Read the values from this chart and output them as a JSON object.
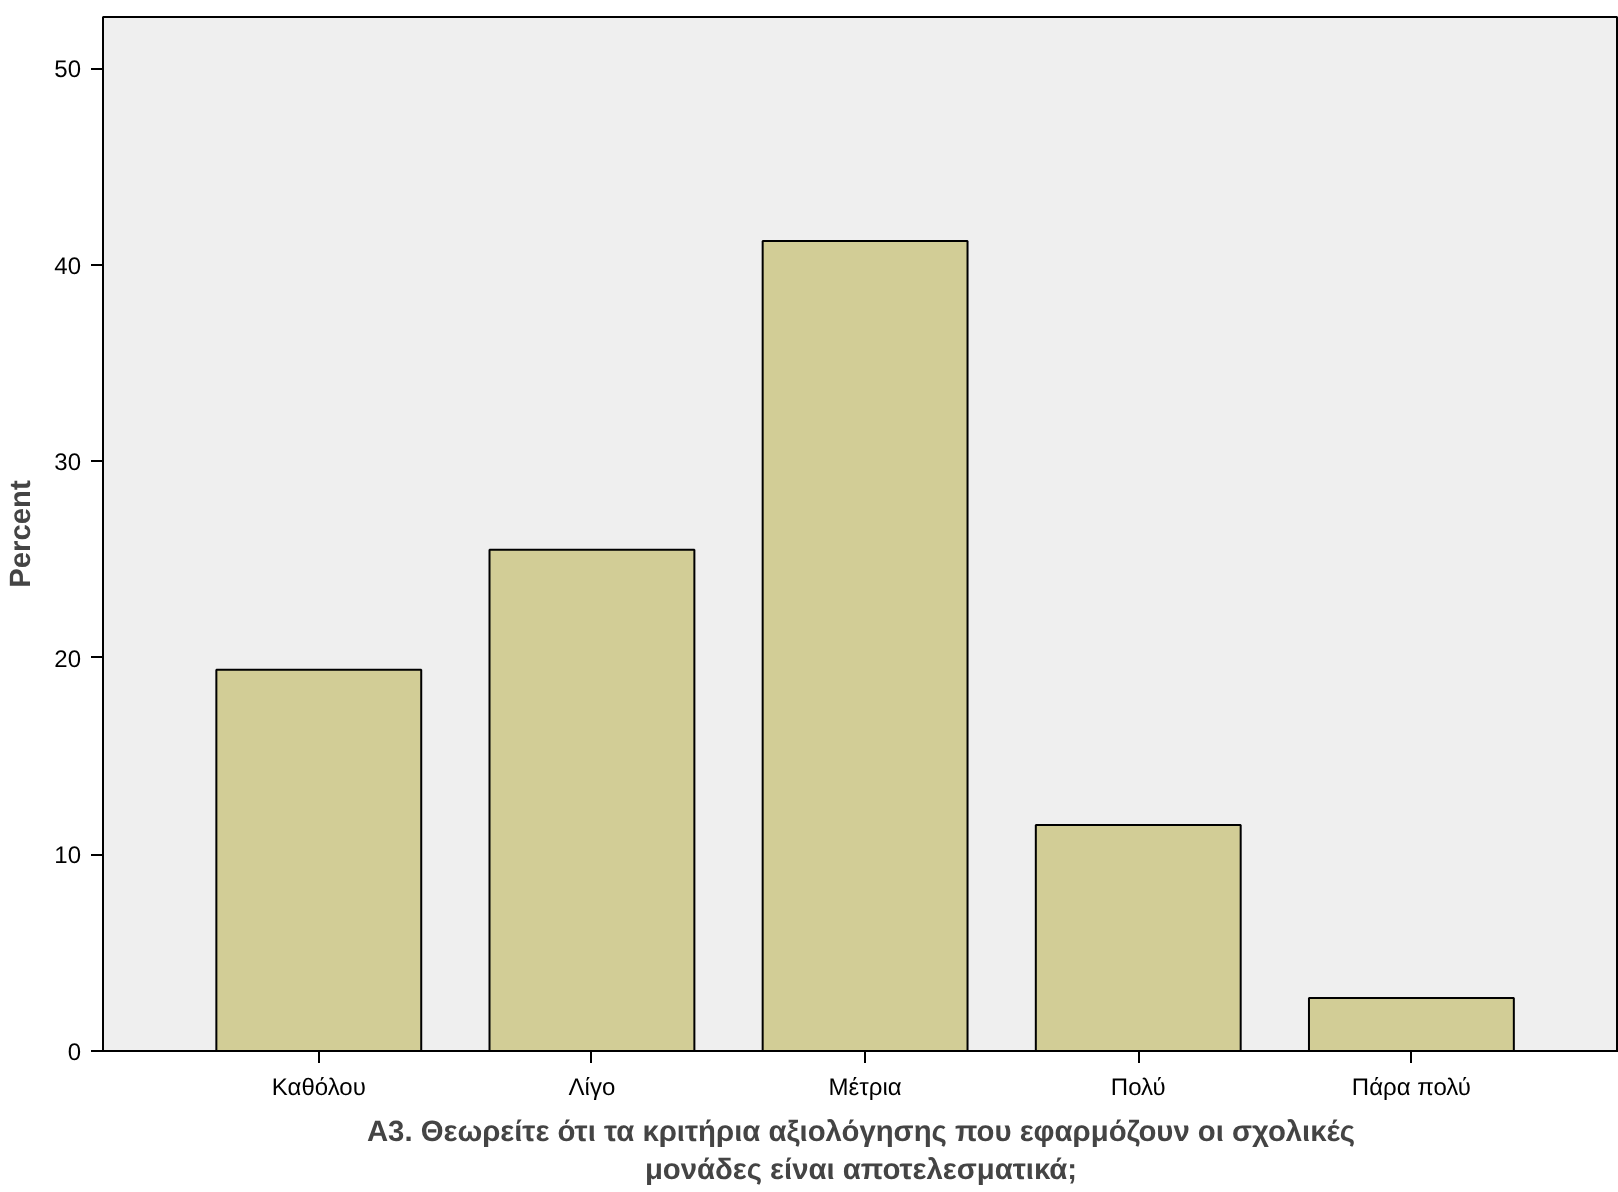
{
  "chart_data": {
    "type": "bar",
    "xlabel": "Α3. Θεωρείτε ότι τα κριτήρια αξιολόγησης που εφαρμόζουν οι σχολικές\nμονάδες είναι αποτελεσματικά;",
    "ylabel": "Percent",
    "categories": [
      "Καθόλου",
      "Λίγο",
      "Μέτρια",
      "Πολύ",
      "Πάρα πολύ"
    ],
    "values": [
      19.4,
      25.5,
      41.2,
      11.5,
      2.7
    ],
    "color": "#d2cd96",
    "ylim": [
      0,
      52.6
    ],
    "yticks": [
      0,
      10,
      20,
      30,
      40,
      50
    ],
    "grid": false
  }
}
